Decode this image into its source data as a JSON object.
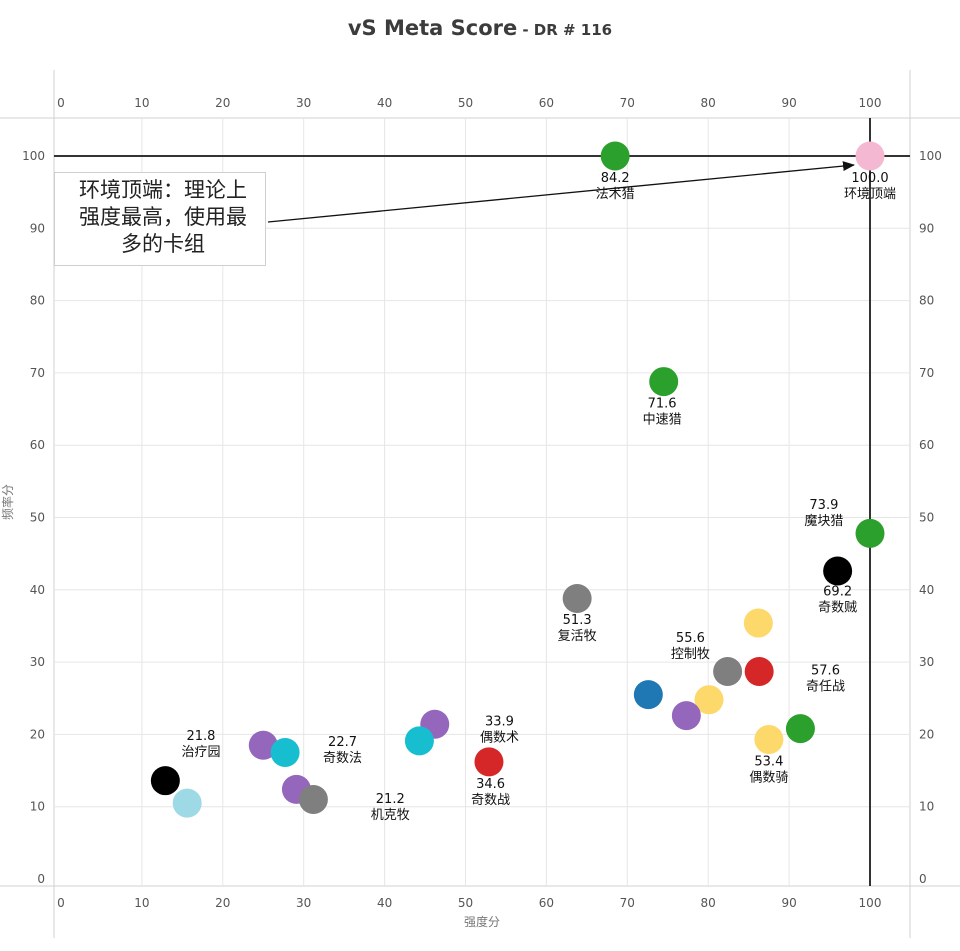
{
  "chart_data": {
    "type": "scatter",
    "title": "vS Meta Score",
    "subtitle": "- DR # 116",
    "xlabel": "强度分",
    "ylabel": "频率分",
    "xlim": [
      0,
      105
    ],
    "ylim": [
      0,
      105
    ],
    "xticks": [
      0,
      10,
      20,
      30,
      40,
      50,
      60,
      70,
      80,
      90,
      100
    ],
    "yticks": [
      0,
      10,
      20,
      30,
      40,
      50,
      60,
      70,
      80,
      90,
      100
    ],
    "grid": true,
    "reference_lines": {
      "x": 100,
      "y": 100
    },
    "annotation": "环境顶端：理论上强度最高，使用最多的卡组",
    "points": [
      {
        "x": 100,
        "y": 100,
        "color": "#f4b8d2"
      },
      {
        "x": 68.5,
        "y": 100,
        "color": "#2ca02c"
      },
      {
        "x": 74.5,
        "y": 68.8,
        "color": "#2ca02c"
      },
      {
        "x": 100,
        "y": 47.8,
        "color": "#2ca02c"
      },
      {
        "x": 96,
        "y": 42.6,
        "color": "#000000"
      },
      {
        "x": 63.8,
        "y": 38.8,
        "color": "#7f7f7f"
      },
      {
        "x": 86.2,
        "y": 35.4,
        "color": "#fdd86b"
      },
      {
        "x": 82.4,
        "y": 28.7,
        "color": "#7f7f7f"
      },
      {
        "x": 86.3,
        "y": 28.7,
        "color": "#d62728"
      },
      {
        "x": 72.6,
        "y": 25.5,
        "color": "#1f77b4"
      },
      {
        "x": 80.1,
        "y": 24.8,
        "color": "#fdd86b"
      },
      {
        "x": 77.3,
        "y": 22.6,
        "color": "#9467bd"
      },
      {
        "x": 91.4,
        "y": 20.8,
        "color": "#2ca02c"
      },
      {
        "x": 87.5,
        "y": 19.3,
        "color": "#fdd86b"
      },
      {
        "x": 46.2,
        "y": 21.4,
        "color": "#9467bd"
      },
      {
        "x": 44.3,
        "y": 19.1,
        "color": "#17becf"
      },
      {
        "x": 52.9,
        "y": 16.2,
        "color": "#d62728"
      },
      {
        "x": 25,
        "y": 18.5,
        "color": "#9467bd"
      },
      {
        "x": 27.7,
        "y": 17.5,
        "color": "#17becf"
      },
      {
        "x": 29.1,
        "y": 12.4,
        "color": "#9467bd"
      },
      {
        "x": 31.2,
        "y": 11,
        "color": "#7f7f7f"
      },
      {
        "x": 12.9,
        "y": 13.6,
        "color": "#000000"
      },
      {
        "x": 15.6,
        "y": 10.5,
        "color": "#9edae5"
      }
    ],
    "labels": [
      {
        "score": "100.0",
        "name": "环境顶端",
        "x": 100,
        "y": 96.4
      },
      {
        "score": "84.2",
        "name": "法术猎",
        "x": 68.5,
        "y": 96.4
      },
      {
        "score": "71.6",
        "name": "中速猎",
        "x": 74.3,
        "y": 65.2
      },
      {
        "score": "73.9",
        "name": "魔块猎",
        "x": 94.3,
        "y": 51.2
      },
      {
        "score": "69.2",
        "name": "奇数贼",
        "x": 96,
        "y": 39.2
      },
      {
        "score": "51.3",
        "name": "复活牧",
        "x": 63.8,
        "y": 35.3
      },
      {
        "score": "55.6",
        "name": "控制牧",
        "x": 77.8,
        "y": 32.8
      },
      {
        "score": "57.6",
        "name": "奇任战",
        "x": 94.5,
        "y": 28.3
      },
      {
        "score": "33.9",
        "name": "偶数术",
        "x": 54.2,
        "y": 21.2
      },
      {
        "score": "53.4",
        "name": "偶数骑",
        "x": 87.5,
        "y": 15.7
      },
      {
        "score": "34.6",
        "name": "奇数战",
        "x": 53.1,
        "y": 12.6
      },
      {
        "score": "21.8",
        "name": "治疗园",
        "x": 17.3,
        "y": 19.2
      },
      {
        "score": "22.7",
        "name": "奇数法",
        "x": 34.8,
        "y": 18.4
      },
      {
        "score": "21.2",
        "name": "机克牧",
        "x": 40.7,
        "y": 10.5
      }
    ]
  }
}
